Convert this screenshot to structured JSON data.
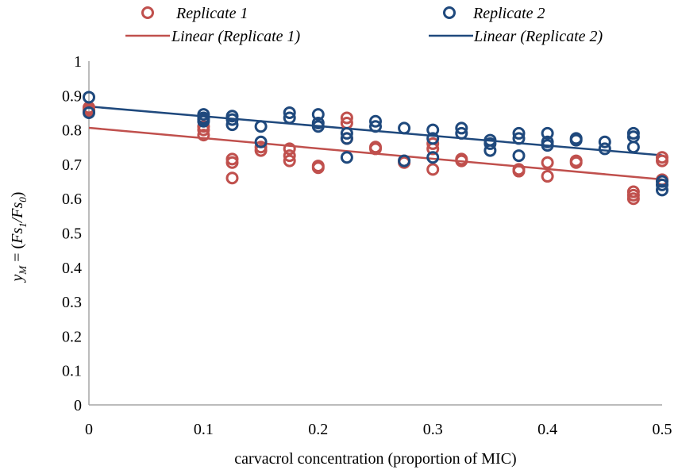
{
  "chart_data": {
    "type": "scatter",
    "title": "",
    "xlabel": "carvacrol concentration (proportion of MIC)",
    "ylabel": {
      "base": "y",
      "base_sub": "M",
      "eq": " = (",
      "num": "Fs",
      "num_sub": "1",
      "slash": "/",
      "den": "Fs",
      "den_sub": "0",
      "close": ")"
    },
    "xlim": [
      0,
      0.5
    ],
    "ylim": [
      0,
      1
    ],
    "x_ticks": [
      "0",
      "0.1",
      "0.2",
      "0.3",
      "0.4",
      "0.5"
    ],
    "y_ticks": [
      "0",
      "0.1",
      "0.2",
      "0.3",
      "0.4",
      "0.5",
      "0.6",
      "0.7",
      "0.8",
      "0.9",
      "1"
    ],
    "grid": false,
    "legend_position": "top",
    "legend": {
      "rep1": "Replicate 1",
      "rep2": "Replicate 2",
      "lin1": "Linear (Replicate 1)",
      "lin2": "Linear (Replicate 2)"
    },
    "series": [
      {
        "name": "Replicate 1",
        "color": "#c0504d",
        "x": [
          0,
          0,
          0,
          0.1,
          0.1,
          0.1,
          0.125,
          0.125,
          0.125,
          0.15,
          0.15,
          0.175,
          0.175,
          0.175,
          0.2,
          0.2,
          0.225,
          0.225,
          0.225,
          0.25,
          0.25,
          0.275,
          0.275,
          0.3,
          0.3,
          0.3,
          0.325,
          0.325,
          0.375,
          0.375,
          0.4,
          0.4,
          0.425,
          0.425,
          0.475,
          0.475,
          0.475,
          0.5,
          0.5,
          0.5
        ],
        "y": [
          0.865,
          0.855,
          0.86,
          0.81,
          0.8,
          0.785,
          0.715,
          0.705,
          0.66,
          0.75,
          0.74,
          0.745,
          0.725,
          0.71,
          0.695,
          0.69,
          0.835,
          0.82,
          0.775,
          0.75,
          0.745,
          0.71,
          0.705,
          0.76,
          0.745,
          0.685,
          0.715,
          0.71,
          0.685,
          0.68,
          0.705,
          0.665,
          0.71,
          0.705,
          0.62,
          0.61,
          0.6,
          0.72,
          0.71,
          0.655
        ]
      },
      {
        "name": "Replicate 2",
        "color": "#1f497d",
        "x": [
          0,
          0,
          0.1,
          0.1,
          0.1,
          0.1,
          0.125,
          0.125,
          0.125,
          0.15,
          0.15,
          0.175,
          0.175,
          0.2,
          0.2,
          0.2,
          0.225,
          0.225,
          0.225,
          0.25,
          0.25,
          0.275,
          0.275,
          0.3,
          0.3,
          0.3,
          0.325,
          0.325,
          0.35,
          0.35,
          0.35,
          0.375,
          0.375,
          0.375,
          0.4,
          0.4,
          0.4,
          0.425,
          0.425,
          0.45,
          0.45,
          0.475,
          0.475,
          0.475,
          0.5,
          0.5,
          0.5
        ],
        "y": [
          0.895,
          0.85,
          0.845,
          0.835,
          0.83,
          0.825,
          0.84,
          0.83,
          0.815,
          0.81,
          0.765,
          0.85,
          0.835,
          0.845,
          0.82,
          0.81,
          0.79,
          0.775,
          0.72,
          0.825,
          0.81,
          0.805,
          0.71,
          0.8,
          0.775,
          0.72,
          0.805,
          0.79,
          0.77,
          0.76,
          0.74,
          0.79,
          0.775,
          0.725,
          0.79,
          0.765,
          0.755,
          0.775,
          0.77,
          0.765,
          0.745,
          0.79,
          0.78,
          0.75,
          0.65,
          0.64,
          0.625
        ]
      }
    ],
    "trendlines": [
      {
        "name": "Linear (Replicate 1)",
        "color": "#c0504d",
        "x": [
          0,
          0.5
        ],
        "y": [
          0.806,
          0.656
        ]
      },
      {
        "name": "Linear (Replicate 2)",
        "color": "#1f497d",
        "x": [
          0,
          0.5
        ],
        "y": [
          0.868,
          0.726
        ]
      }
    ]
  }
}
